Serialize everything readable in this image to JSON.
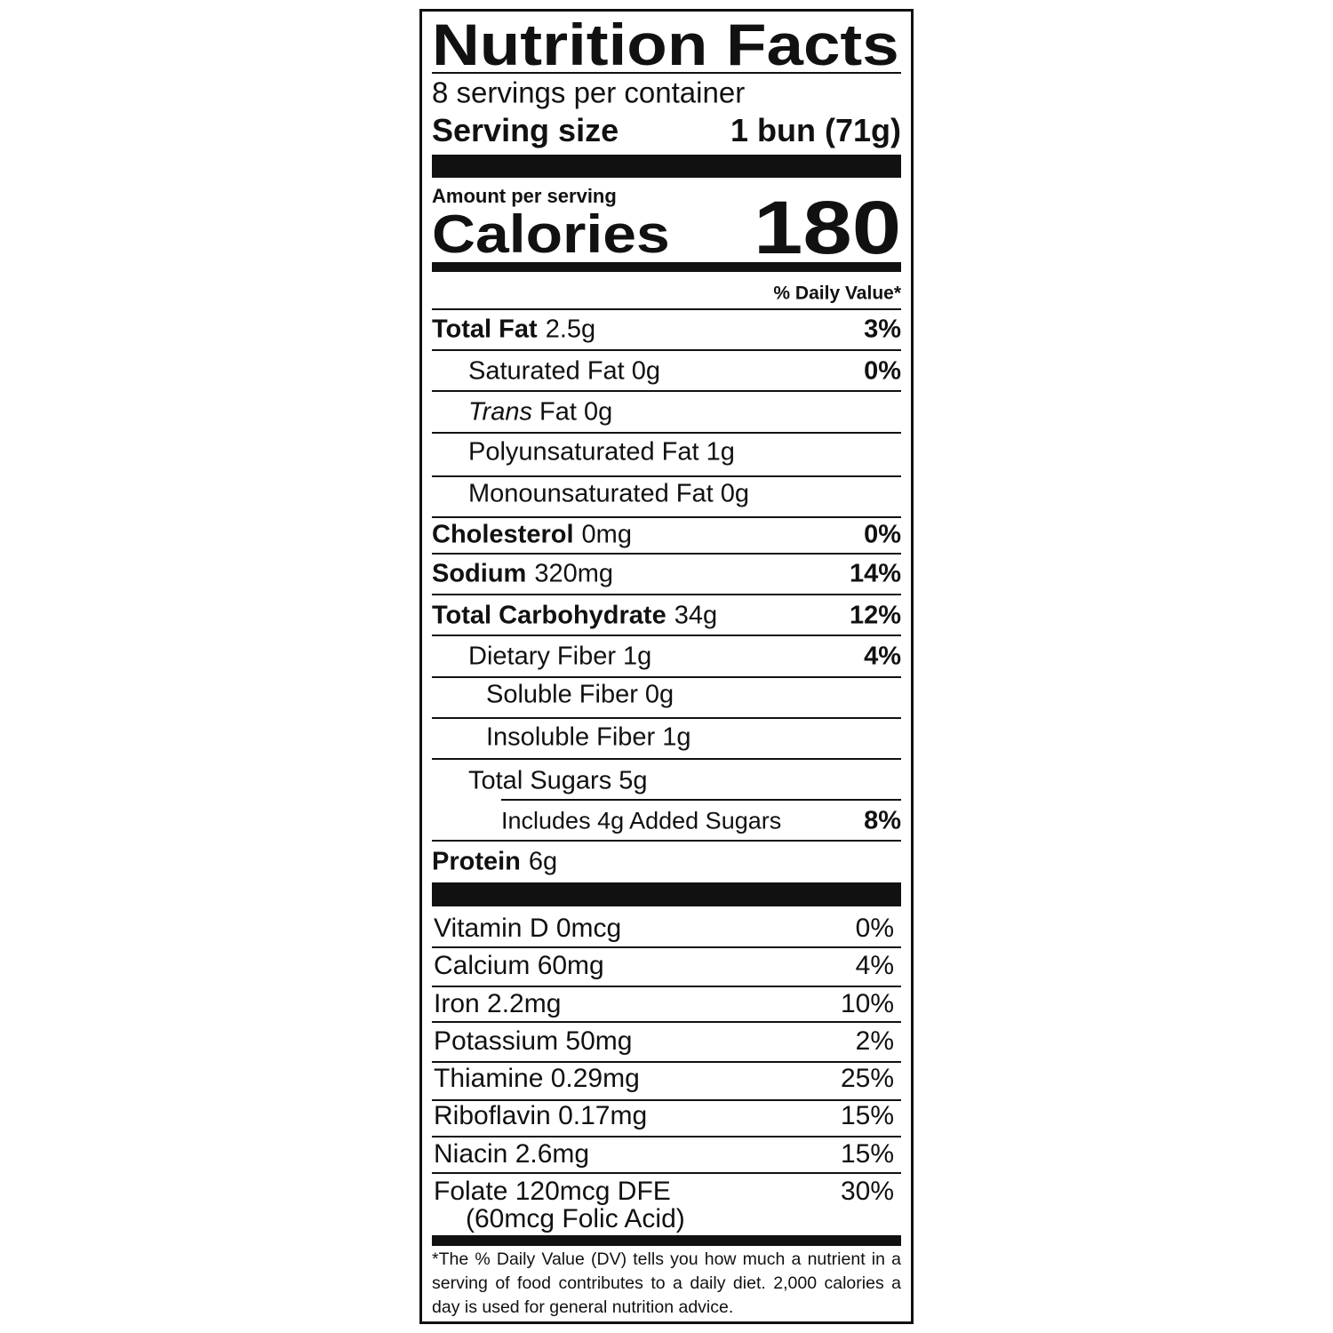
{
  "title": "Nutrition Facts",
  "servings": "8 servings per container",
  "serving_size": {
    "label": "Serving size",
    "value": "1 bun (71g)"
  },
  "amount_per_serving": "Amount per serving",
  "calories": {
    "label": "Calories",
    "value": 180
  },
  "daily_value_header": "% Daily Value*",
  "nutrients": [
    {
      "name": "Total Fat",
      "amount": "2.5g",
      "dv": "3%"
    },
    {
      "text": "Saturated Fat 0g",
      "dv": "0%"
    },
    {
      "italic": "Trans",
      "text": "Fat 0g"
    },
    {
      "text": "Polyunsaturated Fat 1g"
    },
    {
      "text": "Monounsaturated Fat 0g"
    },
    {
      "name": "Cholesterol",
      "amount": "0mg",
      "dv": "0%"
    },
    {
      "name": "Sodium",
      "amount": "320mg",
      "dv": "14%"
    },
    {
      "name": "Total Carbohydrate",
      "amount": "34g",
      "dv": "12%"
    },
    {
      "text": "Dietary Fiber 1g",
      "dv": "4%"
    },
    {
      "text": "Soluble Fiber 0g"
    },
    {
      "text": "Insoluble Fiber 1g"
    },
    {
      "text": "Total Sugars 5g"
    },
    {
      "text": "Includes 4g Added Sugars",
      "dv": "8%"
    },
    {
      "name": "Protein",
      "amount": "6g"
    }
  ],
  "vitamins": [
    {
      "text": "Vitamin D 0mcg",
      "dv": "0%"
    },
    {
      "text": "Calcium 60mg",
      "dv": "4%"
    },
    {
      "text": "Iron 2.2mg",
      "dv": "10%"
    },
    {
      "text": "Potassium 50mg",
      "dv": "2%"
    },
    {
      "text": "Thiamine 0.29mg",
      "dv": "25%"
    },
    {
      "text": "Riboflavin 0.17mg",
      "dv": "15%"
    },
    {
      "text": "Niacin 2.6mg",
      "dv": "15%"
    },
    {
      "text": "Folate 120mcg DFE",
      "subtext": "(60mcg Folic Acid)",
      "dv": "30%"
    }
  ],
  "footnote": "*The % Daily Value (DV) tells you how much a nutrient in a serving of food contributes to a daily diet. 2,000 calories a day is used for general nutrition advice."
}
